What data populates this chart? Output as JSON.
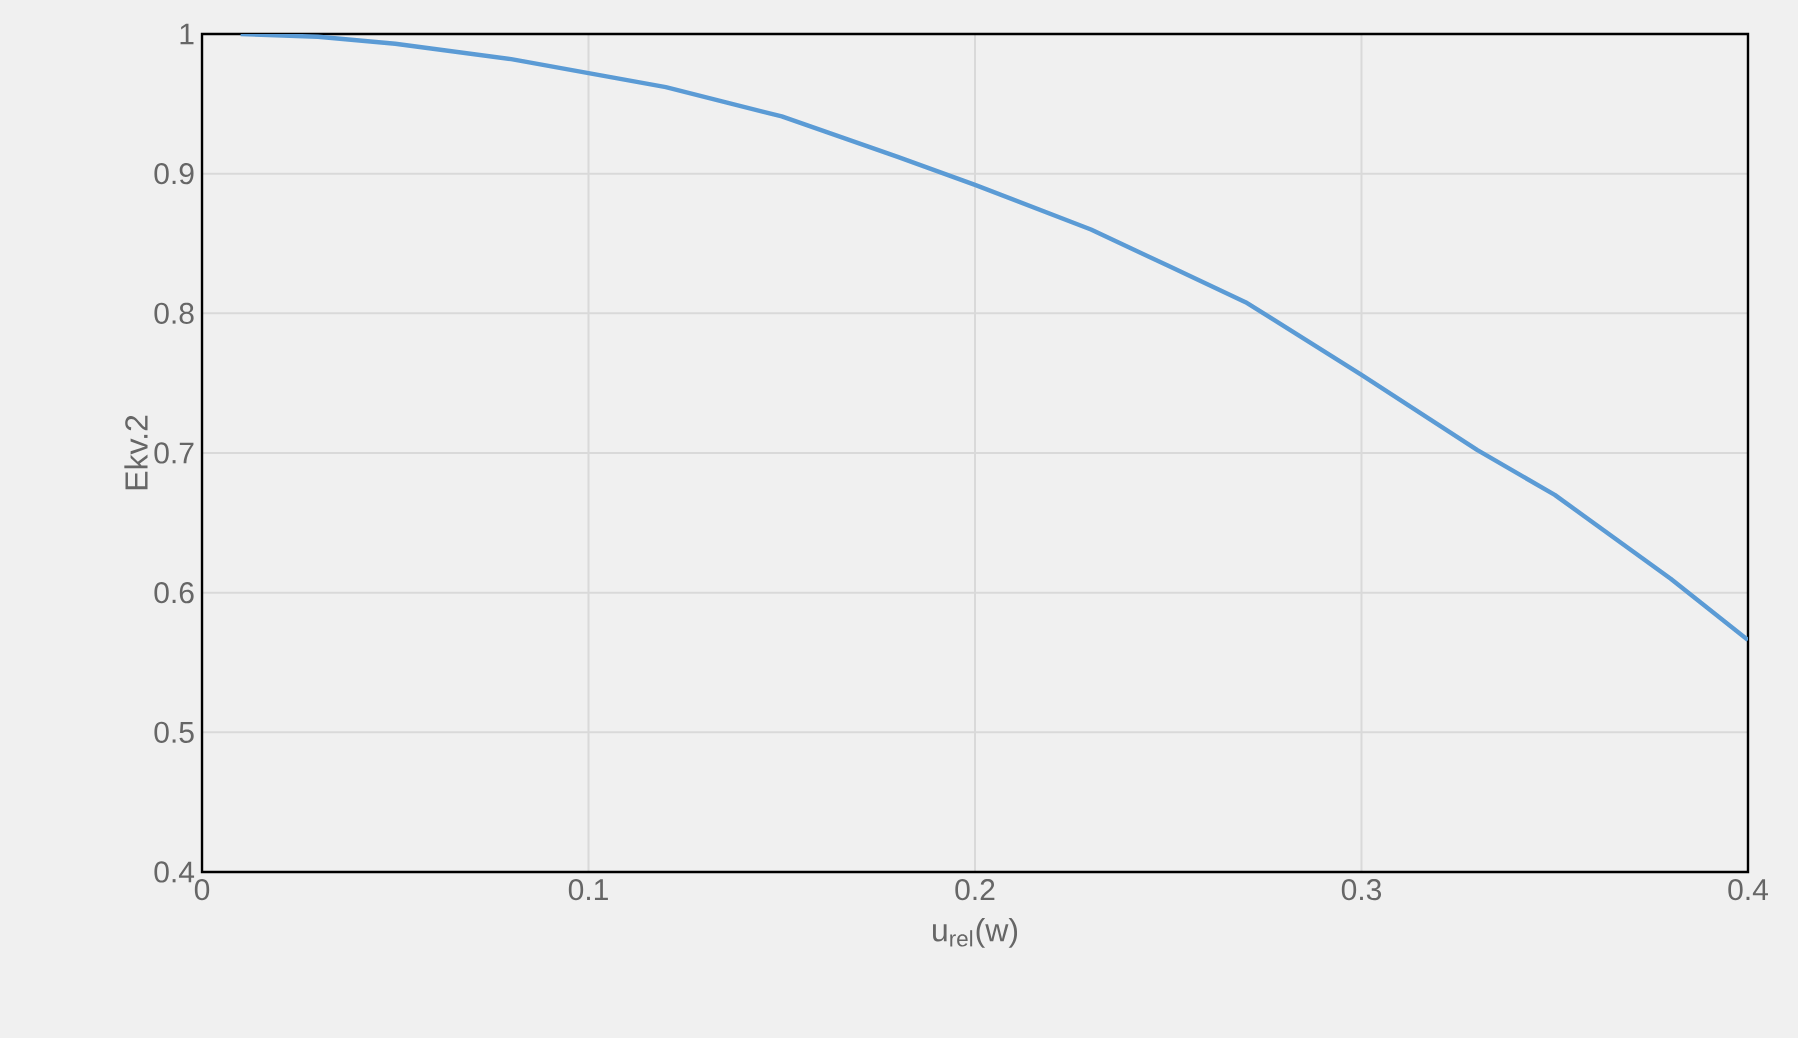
{
  "chart_data": {
    "type": "line",
    "xlabel": "u$_{rel}$(w)",
    "ylabel": "Ekv.2",
    "x": [
      0.01,
      0.03,
      0.05,
      0.08,
      0.1,
      0.12,
      0.15,
      0.18,
      0.2,
      0.23,
      0.25,
      0.27,
      0.3,
      0.33,
      0.35,
      0.38,
      0.4
    ],
    "series": [
      {
        "color": "#5b9bd5",
        "values": [
          1.0,
          0.998,
          0.993,
          0.982,
          0.972,
          0.962,
          0.941,
          0.912,
          0.892,
          0.86,
          0.834,
          0.808,
          0.756,
          0.702,
          0.67,
          0.61,
          0.566
        ]
      }
    ],
    "xlim": [
      0,
      0.4
    ],
    "ylim": [
      0.4,
      1
    ],
    "xticks": [
      {
        "value": 0,
        "label": "0"
      },
      0.1,
      0.2,
      0.3,
      0.4
    ],
    "yticks": [
      0.4,
      0.5,
      0.6,
      0.7,
      0.8,
      0.9,
      1
    ],
    "grid": true,
    "marker": "none",
    "line_style": "solid"
  }
}
